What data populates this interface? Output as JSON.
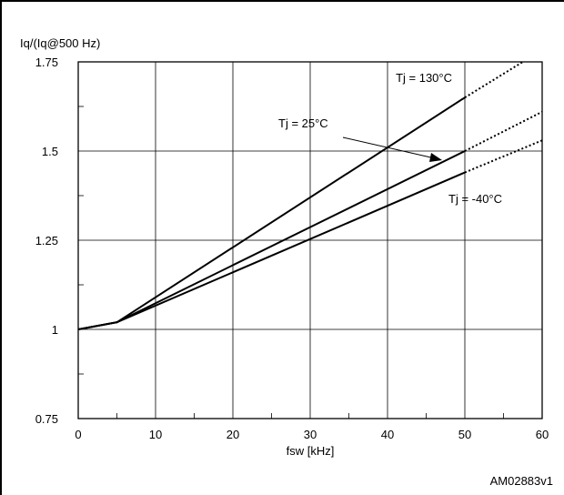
{
  "chart_data": {
    "type": "line",
    "ylabel": "Iq/(Iq@500 Hz)",
    "xlabel": "fsw [kHz]",
    "xlim": [
      0,
      60
    ],
    "ylim": [
      0.75,
      1.75
    ],
    "x_ticks": [
      0,
      10,
      20,
      30,
      40,
      50,
      60
    ],
    "y_ticks": [
      0.75,
      1,
      1.25,
      1.5,
      1.75
    ],
    "y_tick_labels": [
      "0.75",
      "1",
      "1.25",
      "1.5",
      "1.75"
    ],
    "grid": true,
    "series": [
      {
        "name": "Tj = 130°C",
        "solid": {
          "x": [
            0,
            5,
            50
          ],
          "y": [
            1.0,
            1.02,
            1.65
          ]
        },
        "dotted": {
          "x": [
            50,
            57.5
          ],
          "y": [
            1.65,
            1.75
          ]
        }
      },
      {
        "name": "Tj = 25°C",
        "solid": {
          "x": [
            0,
            5,
            50
          ],
          "y": [
            1.0,
            1.02,
            1.5
          ]
        },
        "dotted": {
          "x": [
            50,
            60
          ],
          "y": [
            1.5,
            1.61
          ]
        }
      },
      {
        "name": "Tj = -40°C",
        "solid": {
          "x": [
            0,
            5,
            50
          ],
          "y": [
            1.0,
            1.02,
            1.44
          ]
        },
        "dotted": {
          "x": [
            50,
            60
          ],
          "y": [
            1.44,
            1.53
          ]
        }
      }
    ],
    "annotations": [
      {
        "text": "Tj = 130°C"
      },
      {
        "text": "Tj = 25°C"
      },
      {
        "text": "Tj = -40°C"
      }
    ],
    "footer": "AM02883v1"
  }
}
